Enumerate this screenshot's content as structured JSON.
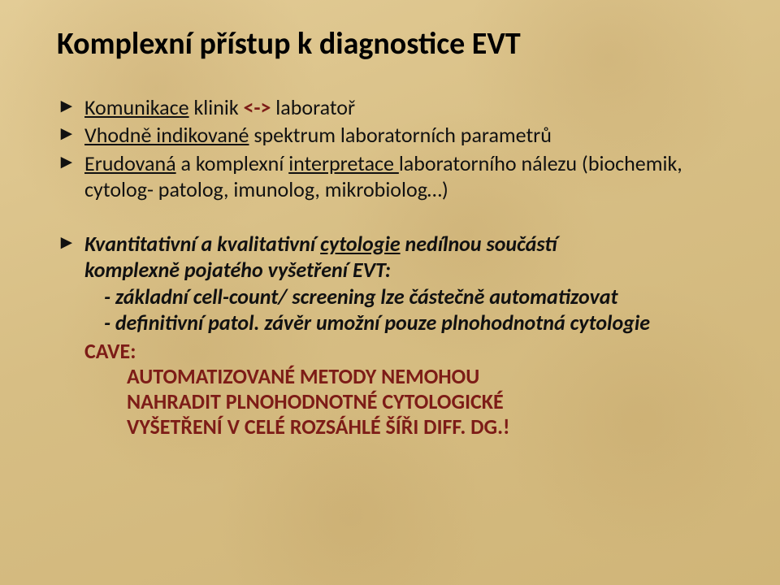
{
  "background_color": "#d9c28e",
  "text_color": "#111111",
  "accent_color": "#7d1c17",
  "title_fontsize": 38,
  "body_fontsize": 26,
  "title": "Komplexní přístup k diagnostice EVT",
  "bullets": {
    "b1_pre": "Komunikace",
    "b1_mid": " klinik ",
    "b1_arrow": "<->",
    "b1_post": " laboratoř",
    "b2_pre": "Vhodně indikované",
    "b2_post": " spektrum laboratorních parametrů",
    "b3_pre": "Erudovaná",
    "b3_post": " a komplexní ",
    "b3_u": "interpretace ",
    "b3_tail": "laboratorního nálezu (biochemik, cytolog- patolog, imunolog, mikrobiolog…)"
  },
  "sub": {
    "lead_pre": "Kvantitativní a kvalitativní ",
    "lead_u": "cytologie",
    "lead_post": " nedílnou součástí",
    "lead_line2": "komplexně pojatého vyšetření EVT:",
    "s1": "- základní cell-count/ screening lze částečně automatizovat",
    "s2": "- definitivní patol. závěr umožní pouze plnohodnotná cytologie"
  },
  "cave": {
    "label": "CAVE:",
    "line1": "AUTOMATIZOVANÉ METODY NEMOHOU",
    "line2": "NAHRADIT PLNOHODNOTNÉ CYTOLOGICKÉ",
    "line3": "VYŠETŘENÍ V CELÉ ROZSÁHLÉ ŠÍŘI DIFF. DG.!"
  }
}
